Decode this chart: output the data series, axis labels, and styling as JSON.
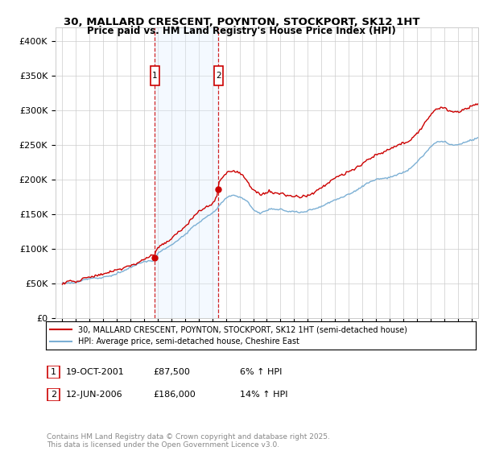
{
  "title": "30, MALLARD CRESCENT, POYNTON, STOCKPORT, SK12 1HT",
  "subtitle": "Price paid vs. HM Land Registry's House Price Index (HPI)",
  "legend_line1": "30, MALLARD CRESCENT, POYNTON, STOCKPORT, SK12 1HT (semi-detached house)",
  "legend_line2": "HPI: Average price, semi-detached house, Cheshire East",
  "footnote": "Contains HM Land Registry data © Crown copyright and database right 2025.\nThis data is licensed under the Open Government Licence v3.0.",
  "sale1_date": "19-OCT-2001",
  "sale1_price": "£87,500",
  "sale1_hpi": "6% ↑ HPI",
  "sale2_date": "12-JUN-2006",
  "sale2_price": "£186,000",
  "sale2_hpi": "14% ↑ HPI",
  "price_line_color": "#cc0000",
  "hpi_line_color": "#7bafd4",
  "shade_color": "#ddeeff",
  "sale1_x": 2001.79,
  "sale2_x": 2006.45,
  "ylim_min": 0,
  "ylim_max": 420000,
  "xlim_min": 1994.5,
  "xlim_max": 2025.5,
  "grid_color": "#cccccc",
  "background_color": "#ffffff"
}
